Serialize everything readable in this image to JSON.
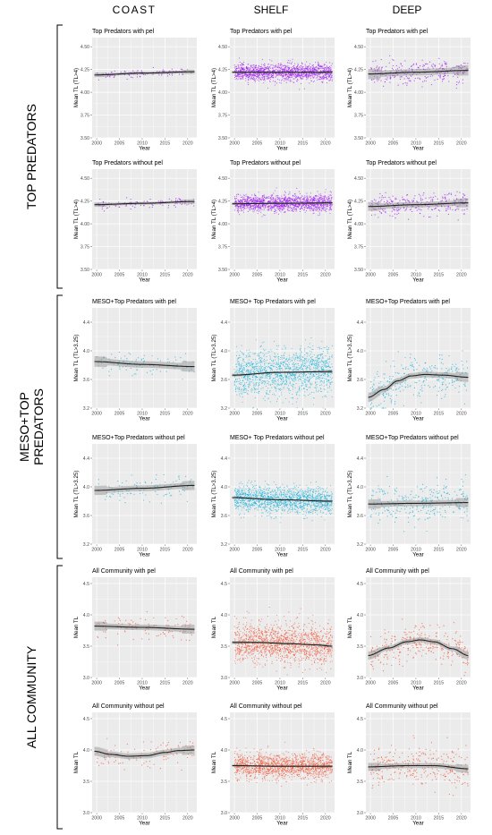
{
  "columns": [
    "COAST",
    "SHELF",
    "DEEP"
  ],
  "rows": [
    {
      "label_lines": [
        "TOP PREDATORS"
      ]
    },
    {
      "label_lines": [
        "MESO+TOP",
        "PREDATORS"
      ]
    },
    {
      "label_lines": [
        "ALL COMMUNITY"
      ]
    }
  ],
  "colors": {
    "top": "#a020f0",
    "meso": "#1fb3d9",
    "all": "#f05a3c",
    "panel_bg": "#ebebeb",
    "grid": "#ffffff",
    "trend": "#222222",
    "band": "#8c8c8c"
  },
  "chart_data": [
    {
      "type": "scatter",
      "row": 0,
      "col": 0,
      "title": "Top Predators with pel",
      "xlabel": "Year",
      "ylabel": "Mean TL (TL>4)",
      "xlim": [
        1999,
        2022
      ],
      "ylim": [
        3.5,
        4.6
      ],
      "yticks": [
        "3.50",
        "3.75",
        "4.00",
        "4.25",
        "4.50"
      ],
      "ytick_values": [
        3.5,
        3.75,
        4.0,
        4.25,
        4.5
      ],
      "xticks": [
        2000,
        2005,
        2010,
        2015,
        2020
      ],
      "density": "low",
      "spread": 0.04,
      "trend": [
        [
          1999.5,
          4.19
        ],
        [
          2010,
          4.21
        ],
        [
          2021.5,
          4.225
        ]
      ],
      "band": 0.015
    },
    {
      "type": "scatter",
      "row": 0,
      "col": 1,
      "title": "Top Predators with pel",
      "xlabel": "Year",
      "ylabel": "Mean TL (TL>4)",
      "xlim": [
        1999,
        2022
      ],
      "ylim": [
        3.5,
        4.6
      ],
      "yticks": [
        "3.50",
        "3.75",
        "4.00",
        "4.25",
        "4.50"
      ],
      "ytick_values": [
        3.5,
        3.75,
        4.0,
        4.25,
        4.5
      ],
      "xticks": [
        2000,
        2005,
        2010,
        2015,
        2020
      ],
      "density": "high",
      "spread": 0.09,
      "trend": [
        [
          1999.5,
          4.22
        ],
        [
          2010,
          4.22
        ],
        [
          2021.5,
          4.22
        ]
      ],
      "band": 0.008
    },
    {
      "type": "scatter",
      "row": 0,
      "col": 2,
      "title": "Top Predators with pel",
      "xlabel": "Year",
      "ylabel": "Mean TL (TL>4)",
      "xlim": [
        1999,
        2022
      ],
      "ylim": [
        3.5,
        4.6
      ],
      "yticks": [
        "3.50",
        "3.75",
        "4.00",
        "4.25",
        "4.50"
      ],
      "ytick_values": [
        3.5,
        3.75,
        4.0,
        4.25,
        4.5
      ],
      "xticks": [
        2000,
        2005,
        2010,
        2015,
        2020
      ],
      "density": "medium",
      "spread": 0.12,
      "trend": [
        [
          1999.5,
          4.2
        ],
        [
          2010,
          4.22
        ],
        [
          2021.5,
          4.24
        ]
      ],
      "band": 0.035
    },
    {
      "type": "scatter",
      "row": 1,
      "col": 0,
      "title": "Top Predators without pel",
      "xlabel": "Year",
      "ylabel": "Mean TL (TL>4)",
      "xlim": [
        1999,
        2022
      ],
      "ylim": [
        3.5,
        4.6
      ],
      "yticks": [
        "3.50",
        "3.75",
        "4.00",
        "4.25",
        "4.50"
      ],
      "ytick_values": [
        3.5,
        3.75,
        4.0,
        4.25,
        4.5
      ],
      "xticks": [
        2000,
        2005,
        2010,
        2015,
        2020
      ],
      "density": "low",
      "spread": 0.05,
      "trend": [
        [
          1999.5,
          4.21
        ],
        [
          2010,
          4.225
        ],
        [
          2021.5,
          4.245
        ]
      ],
      "band": 0.015
    },
    {
      "type": "scatter",
      "row": 1,
      "col": 1,
      "title": "Top Predators without pel",
      "xlabel": "Year",
      "ylabel": "Mean TL (TL>4)",
      "xlim": [
        1999,
        2022
      ],
      "ylim": [
        3.5,
        4.6
      ],
      "yticks": [
        "3.50",
        "3.75",
        "4.00",
        "4.25",
        "4.50"
      ],
      "ytick_values": [
        3.5,
        3.75,
        4.0,
        4.25,
        4.5
      ],
      "xticks": [
        2000,
        2005,
        2010,
        2015,
        2020
      ],
      "density": "high",
      "spread": 0.09,
      "trend": [
        [
          1999.5,
          4.22
        ],
        [
          2010,
          4.225
        ],
        [
          2021.5,
          4.23
        ]
      ],
      "band": 0.008
    },
    {
      "type": "scatter",
      "row": 1,
      "col": 2,
      "title": "Top Predators without pel",
      "xlabel": "Year",
      "ylabel": "Mean TL (TL>4)",
      "xlim": [
        1999,
        2022
      ],
      "ylim": [
        3.5,
        4.6
      ],
      "yticks": [
        "3.50",
        "3.75",
        "4.00",
        "4.25",
        "4.50"
      ],
      "ytick_values": [
        3.5,
        3.75,
        4.0,
        4.25,
        4.5
      ],
      "xticks": [
        2000,
        2005,
        2010,
        2015,
        2020
      ],
      "density": "medium",
      "spread": 0.12,
      "trend": [
        [
          1999.5,
          4.19
        ],
        [
          2010,
          4.21
        ],
        [
          2021.5,
          4.23
        ]
      ],
      "band": 0.03
    },
    {
      "type": "scatter",
      "row": 2,
      "col": 0,
      "title": "MESO+Top Predators with pel",
      "xlabel": "Year",
      "ylabel": "Mean TL (TL>3.25)",
      "xlim": [
        1999,
        2022
      ],
      "ylim": [
        3.2,
        4.6
      ],
      "yticks": [
        "3.2",
        "3.6",
        "4.0",
        "4.4"
      ],
      "ytick_values": [
        3.2,
        3.6,
        4.0,
        4.4
      ],
      "xticks": [
        2000,
        2005,
        2010,
        2015,
        2020
      ],
      "density": "low",
      "spread": 0.15,
      "trend": [
        [
          1999.5,
          3.85
        ],
        [
          2010,
          3.81
        ],
        [
          2021.5,
          3.78
        ]
      ],
      "band": 0.045
    },
    {
      "type": "scatter",
      "row": 2,
      "col": 1,
      "title": "MESO+ Top Predators with pel",
      "xlabel": "Year",
      "ylabel": "Mean TL (TL>3.25)",
      "xlim": [
        1999,
        2022
      ],
      "ylim": [
        3.2,
        4.6
      ],
      "yticks": [
        "3.2",
        "3.6",
        "4.0",
        "4.4"
      ],
      "ytick_values": [
        3.2,
        3.6,
        4.0,
        4.4
      ],
      "xticks": [
        2000,
        2005,
        2010,
        2015,
        2020
      ],
      "density": "high",
      "spread": 0.32,
      "trend": [
        [
          1999.5,
          3.66
        ],
        [
          2010,
          3.7
        ],
        [
          2021.5,
          3.71
        ]
      ],
      "band": 0.012
    },
    {
      "type": "scatter",
      "row": 2,
      "col": 2,
      "title": "MESO+Top Predators with pel",
      "xlabel": "Year",
      "ylabel": "Mean TL (TL>3.25)",
      "xlim": [
        1999,
        2022
      ],
      "ylim": [
        3.2,
        4.6
      ],
      "yticks": [
        "3.2",
        "3.6",
        "4.0",
        "4.4"
      ],
      "ytick_values": [
        3.2,
        3.6,
        4.0,
        4.4
      ],
      "xticks": [
        2000,
        2005,
        2010,
        2015,
        2020
      ],
      "density": "medium",
      "spread": 0.3,
      "trend": [
        [
          1999.5,
          3.35
        ],
        [
          2003,
          3.46
        ],
        [
          2006,
          3.58
        ],
        [
          2009,
          3.65
        ],
        [
          2012,
          3.67
        ],
        [
          2016,
          3.66
        ],
        [
          2021.5,
          3.63
        ]
      ],
      "band": 0.04
    },
    {
      "type": "scatter",
      "row": 3,
      "col": 0,
      "title": "MESO+Top Predators without pel",
      "xlabel": "Year",
      "ylabel": "Mean TL (TL>3.25)",
      "xlim": [
        1999,
        2022
      ],
      "ylim": [
        3.2,
        4.6
      ],
      "yticks": [
        "3.2",
        "3.6",
        "4.0",
        "4.4"
      ],
      "ytick_values": [
        3.2,
        3.6,
        4.0,
        4.4
      ],
      "xticks": [
        2000,
        2005,
        2010,
        2015,
        2020
      ],
      "density": "low",
      "spread": 0.15,
      "trend": [
        [
          1999.5,
          3.95
        ],
        [
          2010,
          3.98
        ],
        [
          2021.5,
          4.02
        ]
      ],
      "band": 0.04
    },
    {
      "type": "scatter",
      "row": 3,
      "col": 1,
      "title": "MESO+ Top Predators without pel",
      "xlabel": "Year",
      "ylabel": "Mean TL (TL>3.25)",
      "xlim": [
        1999,
        2022
      ],
      "ylim": [
        3.2,
        4.6
      ],
      "yticks": [
        "3.2",
        "3.6",
        "4.0",
        "4.4"
      ],
      "ytick_values": [
        3.2,
        3.6,
        4.0,
        4.4
      ],
      "xticks": [
        2000,
        2005,
        2010,
        2015,
        2020
      ],
      "density": "high",
      "spread": 0.18,
      "trend": [
        [
          1999.5,
          3.85
        ],
        [
          2010,
          3.82
        ],
        [
          2021.5,
          3.8
        ]
      ],
      "band": 0.01
    },
    {
      "type": "scatter",
      "row": 3,
      "col": 2,
      "title": "MESO+Top Predators without pel",
      "xlabel": "Year",
      "ylabel": "Mean TL (TL>3.25)",
      "xlim": [
        1999,
        2022
      ],
      "ylim": [
        3.2,
        4.6
      ],
      "yticks": [
        "3.2",
        "3.6",
        "4.0",
        "4.4"
      ],
      "ytick_values": [
        3.2,
        3.6,
        4.0,
        4.4
      ],
      "xticks": [
        2000,
        2005,
        2010,
        2015,
        2020
      ],
      "density": "medium",
      "spread": 0.28,
      "trend": [
        [
          1999.5,
          3.76
        ],
        [
          2010,
          3.77
        ],
        [
          2021.5,
          3.78
        ]
      ],
      "band": 0.04
    },
    {
      "type": "scatter",
      "row": 4,
      "col": 0,
      "title": "All Community with pel",
      "xlabel": "Year",
      "ylabel": "Mean TL",
      "xlim": [
        1999,
        2022
      ],
      "ylim": [
        3.0,
        4.6
      ],
      "yticks": [
        "3.0",
        "3.5",
        "4.0",
        "4.5"
      ],
      "ytick_values": [
        3.0,
        3.5,
        4.0,
        4.5
      ],
      "xticks": [
        2000,
        2005,
        2010,
        2015,
        2020
      ],
      "density": "low",
      "spread": 0.18,
      "trend": [
        [
          1999.5,
          3.82
        ],
        [
          2010,
          3.8
        ],
        [
          2021.5,
          3.77
        ]
      ],
      "band": 0.045
    },
    {
      "type": "scatter",
      "row": 4,
      "col": 1,
      "title": "All Community with pel",
      "xlabel": "Year",
      "ylabel": "Mean TL",
      "xlim": [
        1999,
        2022
      ],
      "ylim": [
        3.0,
        4.6
      ],
      "yticks": [
        "3.0",
        "3.5",
        "4.0",
        "4.5"
      ],
      "ytick_values": [
        3.0,
        3.5,
        4.0,
        4.5
      ],
      "xticks": [
        2000,
        2005,
        2010,
        2015,
        2020
      ],
      "density": "high",
      "spread": 0.3,
      "trend": [
        [
          1999.5,
          3.56
        ],
        [
          2005,
          3.56
        ],
        [
          2012,
          3.54
        ],
        [
          2018,
          3.52
        ],
        [
          2021.5,
          3.5
        ]
      ],
      "band": 0.015
    },
    {
      "type": "scatter",
      "row": 4,
      "col": 2,
      "title": "All Community with pel",
      "xlabel": "Year",
      "ylabel": "Mean TL",
      "xlim": [
        1999,
        2022
      ],
      "ylim": [
        3.0,
        4.6
      ],
      "yticks": [
        "3.0",
        "3.5",
        "4.0",
        "4.5"
      ],
      "ytick_values": [
        3.0,
        3.5,
        4.0,
        4.5
      ],
      "xticks": [
        2000,
        2005,
        2010,
        2015,
        2020
      ],
      "density": "medium",
      "spread": 0.3,
      "trend": [
        [
          1999.5,
          3.35
        ],
        [
          2004,
          3.47
        ],
        [
          2008,
          3.57
        ],
        [
          2011,
          3.6
        ],
        [
          2014,
          3.57
        ],
        [
          2018,
          3.46
        ],
        [
          2021.5,
          3.35
        ]
      ],
      "band": 0.04
    },
    {
      "type": "scatter",
      "row": 5,
      "col": 0,
      "title": "All Community without pel",
      "xlabel": "Year",
      "ylabel": "Mean TL",
      "xlim": [
        1999,
        2022
      ],
      "ylim": [
        3.0,
        4.6
      ],
      "yticks": [
        "3.0",
        "3.5",
        "4.0",
        "4.5"
      ],
      "ytick_values": [
        3.0,
        3.5,
        4.0,
        4.5
      ],
      "xticks": [
        2000,
        2005,
        2010,
        2015,
        2020
      ],
      "density": "low",
      "spread": 0.2,
      "trend": [
        [
          1999.5,
          3.98
        ],
        [
          2003,
          3.93
        ],
        [
          2007,
          3.9
        ],
        [
          2011,
          3.91
        ],
        [
          2015,
          3.96
        ],
        [
          2018,
          3.99
        ],
        [
          2021.5,
          4.0
        ]
      ],
      "band": 0.045
    },
    {
      "type": "scatter",
      "row": 5,
      "col": 1,
      "title": "All Community without pel",
      "xlabel": "Year",
      "ylabel": "Mean TL",
      "xlim": [
        1999,
        2022
      ],
      "ylim": [
        3.0,
        4.6
      ],
      "yticks": [
        "3.0",
        "3.5",
        "4.0",
        "4.5"
      ],
      "ytick_values": [
        3.0,
        3.5,
        4.0,
        4.5
      ],
      "xticks": [
        2000,
        2005,
        2010,
        2015,
        2020
      ],
      "density": "high",
      "spread": 0.2,
      "trend": [
        [
          1999.5,
          3.75
        ],
        [
          2010,
          3.74
        ],
        [
          2021.5,
          3.74
        ]
      ],
      "band": 0.012
    },
    {
      "type": "scatter",
      "row": 5,
      "col": 2,
      "title": "All Community without pel",
      "xlabel": "Year",
      "ylabel": "Mean TL",
      "xlim": [
        1999,
        2022
      ],
      "ylim": [
        3.0,
        4.6
      ],
      "yticks": [
        "3.0",
        "3.5",
        "4.0",
        "4.5"
      ],
      "ytick_values": [
        3.0,
        3.5,
        4.0,
        4.5
      ],
      "xticks": [
        2000,
        2005,
        2010,
        2015,
        2020
      ],
      "density": "medium",
      "spread": 0.3,
      "trend": [
        [
          1999.5,
          3.73
        ],
        [
          2008,
          3.75
        ],
        [
          2014,
          3.75
        ],
        [
          2021.5,
          3.7
        ]
      ],
      "band": 0.04
    }
  ]
}
